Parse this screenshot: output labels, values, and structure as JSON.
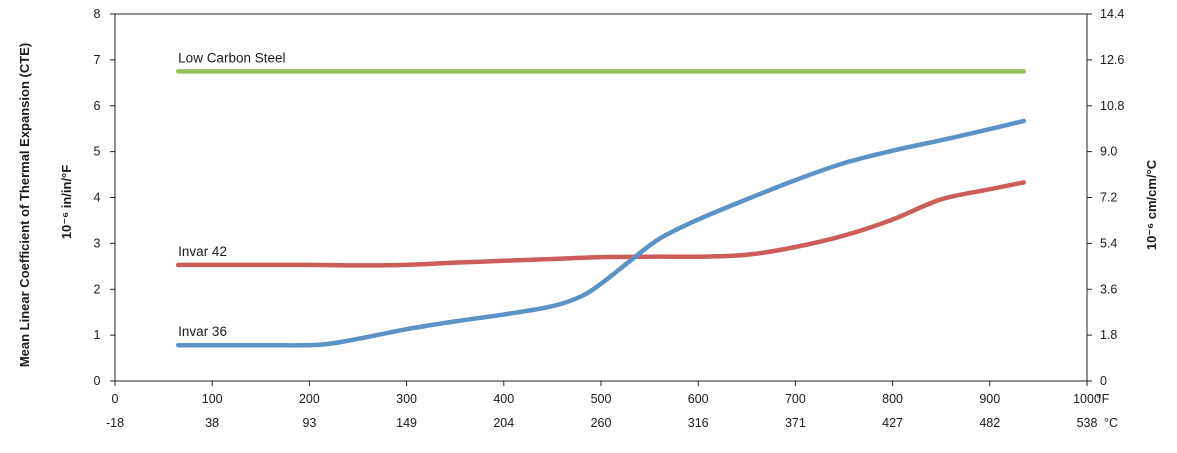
{
  "chart_data": {
    "type": "line",
    "title": "",
    "y_left_label": "Mean Linear Coefficient of Thermal Expansion (CTE)",
    "y_left_unit": "10⁻⁶ in/in/°F",
    "y_right_unit": "10⁻⁶ cm/cm/°C",
    "x_unit_f": "°F",
    "x_unit_c": "°C",
    "xlim": [
      0,
      1000
    ],
    "ylim": [
      0,
      8
    ],
    "x_ticks_f": [
      "0",
      "100",
      "200",
      "300",
      "400",
      "500",
      "600",
      "700",
      "800",
      "900",
      "1000"
    ],
    "x_ticks_c": [
      "-18",
      "38",
      "93",
      "149",
      "204",
      "260",
      "316",
      "371",
      "427",
      "482",
      "538"
    ],
    "y_ticks_left": [
      "0",
      "1",
      "2",
      "3",
      "4",
      "5",
      "6",
      "7",
      "8"
    ],
    "y_ticks_right": [
      "0",
      "1.8",
      "3.6",
      "5.4",
      "7.2",
      "9.0",
      "10.8",
      "12.6",
      "14.4"
    ],
    "grid": false,
    "series": [
      {
        "name": "Low Carbon Steel",
        "color": "#97bf58",
        "x": [
          65,
          935
        ],
        "y": [
          6.75,
          6.75
        ]
      },
      {
        "name": "Invar 42",
        "color": "#cd5d5a",
        "x": [
          65,
          150,
          200,
          250,
          300,
          350,
          400,
          450,
          500,
          550,
          600,
          650,
          700,
          750,
          800,
          850,
          900,
          935
        ],
        "y": [
          2.53,
          2.53,
          2.53,
          2.52,
          2.53,
          2.58,
          2.62,
          2.66,
          2.7,
          2.71,
          2.71,
          2.75,
          2.92,
          3.17,
          3.52,
          3.96,
          4.18,
          4.33
        ]
      },
      {
        "name": "Invar 36",
        "color": "#5b93c7",
        "x": [
          65,
          150,
          210,
          250,
          300,
          350,
          400,
          450,
          480,
          500,
          530,
          560,
          600,
          650,
          700,
          750,
          800,
          850,
          900,
          935
        ],
        "y": [
          0.78,
          0.78,
          0.79,
          0.92,
          1.13,
          1.3,
          1.45,
          1.63,
          1.85,
          2.12,
          2.62,
          3.1,
          3.52,
          3.96,
          4.38,
          4.75,
          5.02,
          5.25,
          5.49,
          5.67
        ]
      }
    ]
  }
}
